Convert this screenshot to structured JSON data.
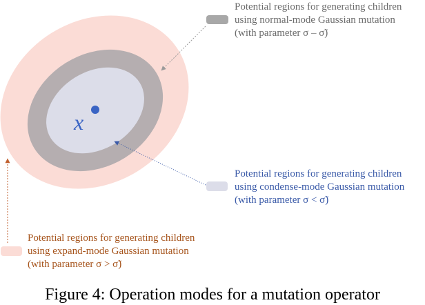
{
  "colors": {
    "expand_region": "#fbdcd6",
    "normal_region": "#b5aeb0",
    "condense_region": "#dcdde9",
    "center_point": "#3a64c4",
    "normal_text": "#6b6b6b",
    "condense_text": "#3a5aa8",
    "expand_text": "#a6541c",
    "normal_arrow": "#9a9a9a",
    "condense_arrow": "#3a5aa8",
    "expand_arrow": "#c06030"
  },
  "center_label": "x",
  "legends": {
    "normal": {
      "line1": "Potential regions for generating children",
      "line2": "using normal-mode Gaussian mutation",
      "line3": "(with parameter σ – σ̃)"
    },
    "condense": {
      "line1": "Potential regions for generating children",
      "line2": "using condense-mode Gaussian mutation",
      "line3": "(with parameter σ < σ̃)"
    },
    "expand": {
      "line1": "Potential regions for generating children",
      "line2": "using expand-mode Gaussian mutation",
      "line3": "(with parameter σ > σ̃)"
    }
  },
  "caption": "Figure 4: Operation modes for a mutation operator"
}
